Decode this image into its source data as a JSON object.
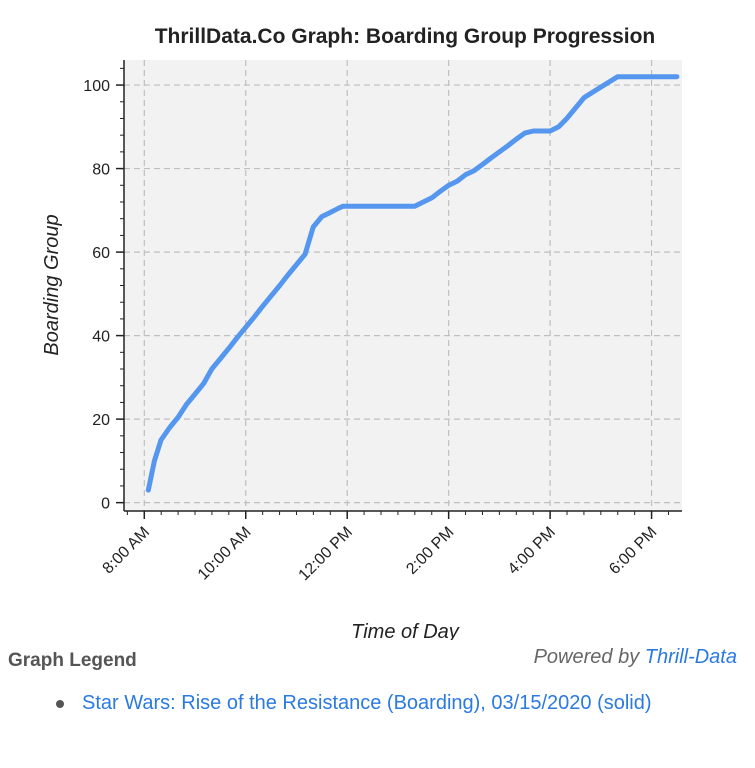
{
  "chart_data": {
    "type": "line",
    "title": "ThrillData.Co Graph: Boarding Group Progression",
    "xlabel": "Time of Day",
    "ylabel": "Boarding Group",
    "x_unit": "hours",
    "xlim": [
      7.6,
      18.6
    ],
    "ylim": [
      -2,
      106
    ],
    "x_ticks": [
      {
        "value": 8,
        "label": "8:00 AM"
      },
      {
        "value": 10,
        "label": "10:00 AM"
      },
      {
        "value": 12,
        "label": "12:00 PM"
      },
      {
        "value": 14,
        "label": "2:00 PM"
      },
      {
        "value": 16,
        "label": "4:00 PM"
      },
      {
        "value": 18,
        "label": "6:00 PM"
      }
    ],
    "y_ticks": [
      0,
      20,
      40,
      60,
      80,
      100
    ],
    "grid": true,
    "series": [
      {
        "name": "Star Wars: Rise of the Resistance (Boarding), 03/15/2020",
        "style": "solid",
        "color": "#5596ee",
        "x": [
          8.08,
          8.2,
          8.33,
          8.5,
          8.67,
          8.83,
          9.0,
          9.17,
          9.33,
          9.5,
          9.67,
          9.83,
          10.0,
          10.17,
          10.33,
          10.5,
          10.67,
          10.83,
          11.0,
          11.17,
          11.33,
          11.5,
          11.67,
          11.75,
          11.83,
          11.92,
          12.0,
          12.17,
          12.33,
          12.5,
          12.67,
          13.0,
          13.33,
          13.67,
          13.83,
          14.0,
          14.17,
          14.33,
          14.5,
          14.67,
          14.83,
          15.0,
          15.17,
          15.33,
          15.5,
          15.67,
          15.83,
          16.0,
          16.17,
          16.33,
          16.5,
          16.67,
          17.0,
          17.33,
          17.5,
          17.67,
          17.83,
          18.0,
          18.17,
          18.33,
          18.5
        ],
        "y": [
          3,
          10,
          15,
          18,
          20.5,
          23.5,
          26,
          28.5,
          32,
          34.5,
          37,
          39.5,
          42,
          44.5,
          47,
          49.5,
          52,
          54.5,
          57,
          59.5,
          66,
          68.5,
          69.5,
          70,
          70.5,
          71,
          71,
          71,
          71,
          71,
          71,
          71,
          71,
          73,
          74.5,
          76,
          77,
          78.5,
          79.5,
          81,
          82.5,
          84,
          85.5,
          87,
          88.5,
          89,
          89,
          89,
          90,
          92,
          94.5,
          97,
          99.5,
          102,
          102,
          102,
          102,
          102,
          102,
          102,
          102
        ]
      }
    ]
  },
  "legend": {
    "heading": "Graph Legend",
    "entries": [
      {
        "label": "Star Wars: Rise of the Resistance (Boarding), 03/15/2020 (solid)",
        "color": "#2a7ae2"
      }
    ]
  },
  "footer": {
    "powered_prefix": "Powered by ",
    "powered_brand": "Thrill-Data"
  },
  "colors": {
    "plot_background": "#f2f2f2",
    "gridline": "#bfbfbf",
    "line": "#5596ee",
    "link": "#2a7ae2"
  }
}
